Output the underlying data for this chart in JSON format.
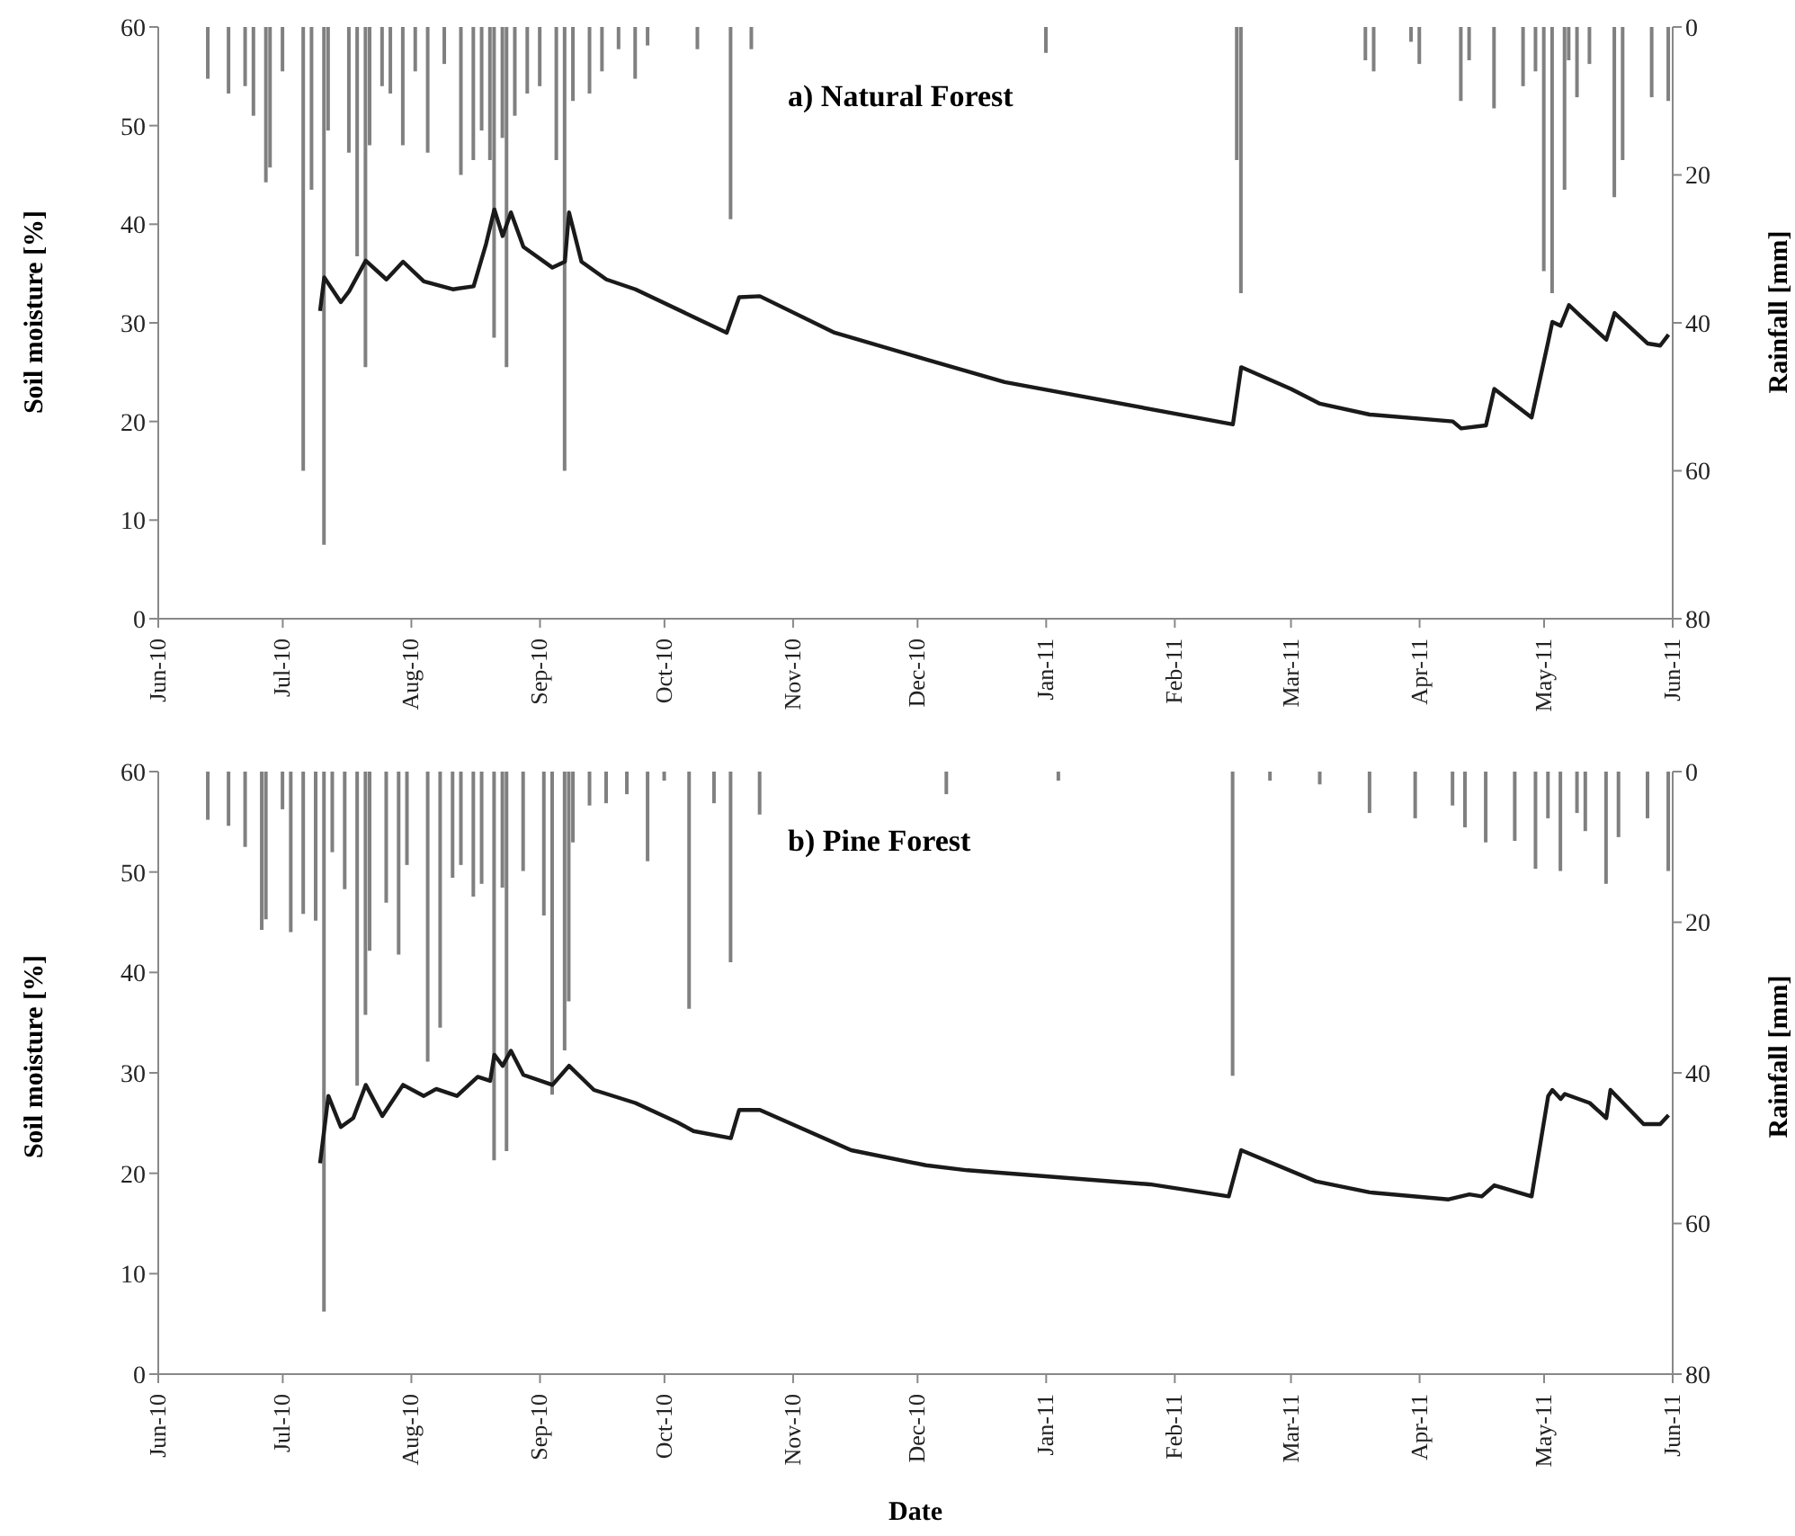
{
  "chart_data": [
    {
      "type": "line",
      "title": "a) Natural Forest",
      "ylabel": "Soil moisture [%]",
      "y2label": "Rainfall [mm]",
      "xlim": [
        "2010-06-01",
        "2011-06-01"
      ],
      "xticks": [
        {
          "value": "2010-06-01",
          "label": "Jun-10"
        },
        {
          "value": "2010-07-01",
          "label": "Jul-10"
        },
        {
          "value": "2010-08-01",
          "label": "Aug-10"
        },
        {
          "value": "2010-09-01",
          "label": "Sep-10"
        },
        {
          "value": "2010-10-01",
          "label": "Oct-10"
        },
        {
          "value": "2010-11-01",
          "label": "Nov-10"
        },
        {
          "value": "2010-12-01",
          "label": "Dec-10"
        },
        {
          "value": "2011-01-01",
          "label": "Jan-11"
        },
        {
          "value": "2011-02-01",
          "label": "Feb-11"
        },
        {
          "value": "2011-03-01",
          "label": "Mar-11"
        },
        {
          "value": "2011-04-01",
          "label": "Apr-11"
        },
        {
          "value": "2011-05-01",
          "label": "May-11"
        },
        {
          "value": "2011-06-01",
          "label": "Jun-11"
        }
      ],
      "ylim": [
        0,
        60
      ],
      "yticks": [
        0,
        10,
        20,
        30,
        40,
        50,
        60
      ],
      "y2lim": [
        80,
        0
      ],
      "y2ticks": [
        0,
        20,
        40,
        60,
        80
      ],
      "series": [
        {
          "type": "bar",
          "axis": "y2",
          "color": "#808080",
          "x": [
            "2010-06-13",
            "2010-06-18",
            "2010-06-22",
            "2010-06-24",
            "2010-06-27",
            "2010-06-28",
            "2010-07-01",
            "2010-07-06",
            "2010-07-08",
            "2010-07-11",
            "2010-07-12",
            "2010-07-17",
            "2010-07-19",
            "2010-07-21",
            "2010-07-22",
            "2010-07-25",
            "2010-07-27",
            "2010-07-30",
            "2010-08-02",
            "2010-08-05",
            "2010-08-09",
            "2010-08-13",
            "2010-08-16",
            "2010-08-18",
            "2010-08-20",
            "2010-08-21",
            "2010-08-23",
            "2010-08-24",
            "2010-08-26",
            "2010-08-29",
            "2010-09-01",
            "2010-09-05",
            "2010-09-07",
            "2010-09-09",
            "2010-09-13",
            "2010-09-16",
            "2010-09-20",
            "2010-09-24",
            "2010-09-27",
            "2010-10-09",
            "2010-10-17",
            "2010-10-22",
            "2011-01-01",
            "2011-02-16",
            "2011-02-17",
            "2011-03-19",
            "2011-03-21",
            "2011-03-30",
            "2011-04-01",
            "2011-04-11",
            "2011-04-13",
            "2011-04-19",
            "2011-04-26",
            "2011-04-29",
            "2011-05-01",
            "2011-05-03",
            "2011-05-06",
            "2011-05-07",
            "2011-05-09",
            "2011-05-12",
            "2011-05-18",
            "2011-05-20",
            "2011-05-27",
            "2011-05-31"
          ],
          "values": [
            7,
            9,
            8,
            12,
            21,
            19,
            6,
            60,
            22,
            70,
            14,
            17,
            31,
            46,
            16,
            8,
            9,
            16,
            6,
            17,
            5,
            20,
            18,
            14,
            18,
            42,
            15,
            46,
            12,
            9,
            8,
            18,
            60,
            10,
            9,
            6,
            3,
            7,
            2.5,
            3,
            26,
            3,
            3.5,
            18,
            36,
            4.5,
            6,
            2,
            5,
            10,
            4.5,
            11,
            8,
            6,
            33,
            36,
            22,
            4.5,
            9.5,
            5,
            23,
            18,
            9.5,
            10
          ]
        },
        {
          "color": "#1a1a1a",
          "x": [
            "2010-07-10",
            "2010-07-11",
            "2010-07-15",
            "2010-07-17",
            "2010-07-21",
            "2010-07-26",
            "2010-07-30",
            "2010-08-04",
            "2010-08-11",
            "2010-08-16",
            "2010-08-19",
            "2010-08-21",
            "2010-08-23",
            "2010-08-25",
            "2010-08-28",
            "2010-09-04",
            "2010-09-07",
            "2010-09-08",
            "2010-09-11",
            "2010-09-17",
            "2010-09-24",
            "2010-10-08",
            "2010-10-16",
            "2010-10-19",
            "2010-10-24",
            "2010-11-11",
            "2010-12-03",
            "2010-12-22",
            "2011-02-15",
            "2011-02-17",
            "2011-03-01",
            "2011-03-08",
            "2011-03-20",
            "2011-04-09",
            "2011-04-11",
            "2011-04-17",
            "2011-04-19",
            "2011-04-28",
            "2011-05-02",
            "2011-05-03",
            "2011-05-05",
            "2011-05-07",
            "2011-05-10",
            "2011-05-16",
            "2011-05-18",
            "2011-05-26",
            "2011-05-29",
            "2011-05-31"
          ],
          "values": [
            31.2,
            34.6,
            32.1,
            33.2,
            36.3,
            34.4,
            36.2,
            34.2,
            33.4,
            33.7,
            38,
            41.5,
            38.8,
            41.2,
            37.7,
            35.6,
            36.2,
            41.2,
            36.2,
            34.4,
            33.4,
            30.6,
            29,
            32.6,
            32.7,
            29,
            26.3,
            24,
            19.7,
            25.5,
            23.3,
            21.8,
            20.7,
            20,
            19.3,
            19.6,
            23.3,
            20.4,
            28.1,
            30.1,
            29.7,
            31.8,
            30.6,
            28.3,
            31,
            27.9,
            27.7,
            28.8
          ]
        }
      ]
    },
    {
      "type": "line",
      "title": "b) Pine Forest",
      "xlabel": "Date",
      "ylabel": "Soil moisture [%]",
      "y2label": "Rainfall [mm]",
      "xlim": [
        "2010-06-01",
        "2011-06-01"
      ],
      "xticks": [
        {
          "value": "2010-06-01",
          "label": "Jun-10"
        },
        {
          "value": "2010-07-01",
          "label": "Jul-10"
        },
        {
          "value": "2010-08-01",
          "label": "Aug-10"
        },
        {
          "value": "2010-09-01",
          "label": "Sep-10"
        },
        {
          "value": "2010-10-01",
          "label": "Oct-10"
        },
        {
          "value": "2010-11-01",
          "label": "Nov-10"
        },
        {
          "value": "2010-12-01",
          "label": "Dec-10"
        },
        {
          "value": "2011-01-01",
          "label": "Jan-11"
        },
        {
          "value": "2011-02-01",
          "label": "Feb-11"
        },
        {
          "value": "2011-03-01",
          "label": "Mar-11"
        },
        {
          "value": "2011-04-01",
          "label": "Apr-11"
        },
        {
          "value": "2011-05-01",
          "label": "May-11"
        },
        {
          "value": "2011-06-01",
          "label": "Jun-11"
        }
      ],
      "ylim": [
        0,
        60
      ],
      "yticks": [
        0,
        10,
        20,
        30,
        40,
        50,
        60
      ],
      "y2lim": [
        80,
        0
      ],
      "y2ticks": [
        0,
        20,
        40,
        60,
        80
      ],
      "series": [
        {
          "type": "bar",
          "axis": "y2",
          "color": "#808080",
          "x": [
            "2010-06-13",
            "2010-06-18",
            "2010-06-22",
            "2010-06-26",
            "2010-06-27",
            "2010-07-01",
            "2010-07-03",
            "2010-07-06",
            "2010-07-09",
            "2010-07-11",
            "2010-07-13",
            "2010-07-16",
            "2010-07-19",
            "2010-07-21",
            "2010-07-22",
            "2010-07-26",
            "2010-07-29",
            "2010-07-31",
            "2010-08-05",
            "2010-08-08",
            "2010-08-11",
            "2010-08-13",
            "2010-08-16",
            "2010-08-18",
            "2010-08-21",
            "2010-08-23",
            "2010-08-24",
            "2010-08-28",
            "2010-09-02",
            "2010-09-04",
            "2010-09-07",
            "2010-09-08",
            "2010-09-09",
            "2010-09-13",
            "2010-09-17",
            "2010-09-22",
            "2010-09-27",
            "2010-10-01",
            "2010-10-07",
            "2010-10-13",
            "2010-10-17",
            "2010-10-24",
            "2010-12-08",
            "2011-01-04",
            "2011-02-15",
            "2011-02-24",
            "2011-03-08",
            "2011-03-20",
            "2011-03-31",
            "2011-04-09",
            "2011-04-12",
            "2011-04-17",
            "2011-04-24",
            "2011-04-29",
            "2011-05-02",
            "2011-05-05",
            "2011-05-09",
            "2011-05-11",
            "2011-05-16",
            "2011-05-19",
            "2011-05-26",
            "2011-05-31"
          ],
          "values": [
            6.4,
            7.2,
            10,
            21,
            19.6,
            5,
            21.3,
            18.9,
            19.8,
            71.7,
            10.7,
            15.6,
            41.7,
            32.3,
            23.8,
            17.4,
            24.3,
            12.4,
            38.5,
            34,
            14.1,
            12.4,
            16.6,
            14.9,
            51.6,
            15.4,
            50.4,
            13.2,
            19.1,
            42.9,
            37,
            30.5,
            9.4,
            4.5,
            4.2,
            3,
            11.9,
            1.2,
            31.5,
            4.2,
            25.3,
            5.7,
            3,
            1.2,
            40.4,
            1.2,
            1.7,
            5.5,
            6.2,
            4.5,
            7.4,
            9.4,
            9.2,
            12.9,
            6.2,
            13.2,
            5.5,
            7.9,
            14.9,
            8.7,
            6.2,
            13.2
          ]
        },
        {
          "color": "#1a1a1a",
          "x": [
            "2010-07-10",
            "2010-07-12",
            "2010-07-15",
            "2010-07-18",
            "2010-07-21",
            "2010-07-25",
            "2010-07-30",
            "2010-08-04",
            "2010-08-07",
            "2010-08-12",
            "2010-08-17",
            "2010-08-20",
            "2010-08-21",
            "2010-08-23",
            "2010-08-25",
            "2010-08-28",
            "2010-09-04",
            "2010-09-08",
            "2010-09-14",
            "2010-09-24",
            "2010-10-04",
            "2010-10-08",
            "2010-10-17",
            "2010-10-19",
            "2010-10-24",
            "2010-11-15",
            "2010-12-03",
            "2010-12-13",
            "2011-01-26",
            "2011-02-14",
            "2011-02-17",
            "2011-03-07",
            "2011-03-20",
            "2011-04-08",
            "2011-04-13",
            "2011-04-16",
            "2011-04-19",
            "2011-04-28",
            "2011-05-02",
            "2011-05-03",
            "2011-05-05",
            "2011-05-06",
            "2011-05-12",
            "2011-05-16",
            "2011-05-17",
            "2011-05-25",
            "2011-05-29",
            "2011-05-31"
          ],
          "values": [
            21,
            27.7,
            24.6,
            25.5,
            28.8,
            25.7,
            28.8,
            27.7,
            28.4,
            27.7,
            29.6,
            29.2,
            31.8,
            30.7,
            32.2,
            29.8,
            28.8,
            30.7,
            28.3,
            27,
            25.1,
            24.2,
            23.5,
            26.3,
            26.3,
            22.3,
            20.8,
            20.3,
            18.9,
            17.7,
            22.3,
            19.2,
            18.1,
            17.4,
            17.9,
            17.7,
            18.8,
            17.7,
            27.7,
            28.3,
            27.4,
            27.9,
            27,
            25.5,
            28.3,
            24.9,
            24.9,
            25.8
          ]
        }
      ]
    }
  ]
}
